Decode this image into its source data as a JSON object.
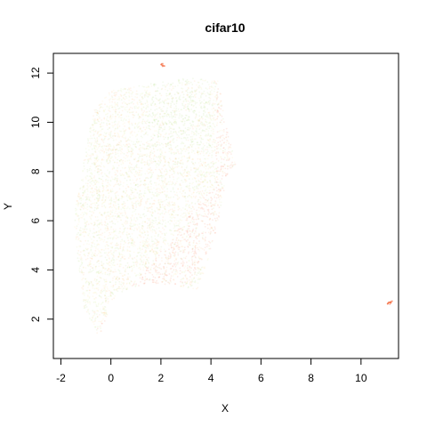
{
  "chart_data": {
    "type": "scatter",
    "title": "cifar10",
    "xlabel": "X",
    "ylabel": "Y",
    "xlim": [
      -2.3,
      11.5
    ],
    "ylim": [
      0.4,
      12.8
    ],
    "xticks": [
      -2,
      0,
      2,
      4,
      6,
      8,
      10
    ],
    "yticks": [
      2,
      4,
      6,
      8,
      10,
      12
    ],
    "grid": false,
    "legend": "none",
    "point_colors": [
      "#f46d43",
      "#fdae61",
      "#fee08b",
      "#d9ef8b",
      "#a6d96a"
    ],
    "point_alpha": 0.12,
    "series": [
      {
        "name": "",
        "values": [
          [
            -1.1,
            2.5
          ],
          [
            -0.5,
            1.2
          ],
          [
            0.2,
            3.0
          ],
          [
            1.5,
            3.5
          ],
          [
            3.5,
            3.2
          ],
          [
            4.0,
            4.8
          ],
          [
            4.3,
            6.0
          ],
          [
            4.7,
            8.0
          ],
          [
            5.0,
            8.3
          ],
          [
            4.7,
            9.5
          ],
          [
            4.3,
            11.7
          ],
          [
            3.0,
            11.8
          ],
          [
            1.2,
            11.5
          ],
          [
            0.0,
            11.3
          ],
          [
            -0.7,
            10.5
          ],
          [
            -1.0,
            9.0
          ],
          [
            -1.2,
            7.5
          ],
          [
            -1.5,
            6.2
          ],
          [
            -1.3,
            4.2
          ]
        ]
      },
      {
        "name": "",
        "values": [
          [
            2.05,
            12.35
          ],
          [
            2.1,
            12.3
          ],
          [
            11.1,
            2.62
          ],
          [
            11.2,
            2.7
          ],
          [
            11.15,
            2.66
          ]
        ]
      }
    ]
  }
}
